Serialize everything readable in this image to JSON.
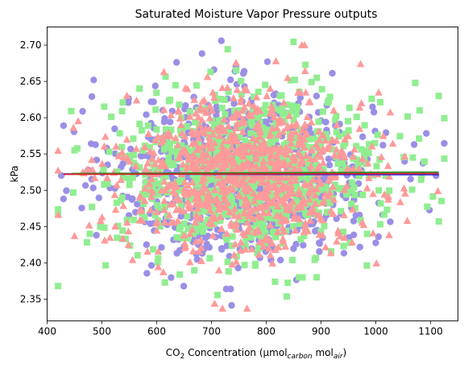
{
  "chart_data": {
    "type": "scatter",
    "title": "Saturated Moisture Vapor Pressure outputs",
    "xlabel": {
      "prefix": "CO",
      "sub1": "2",
      "middle": " Concentration (μmol",
      "sub2": "carbon",
      "middle2": " mol",
      "sub3": "air",
      "suffix": ")"
    },
    "ylabel": "kPa",
    "xlim": [
      400,
      1150
    ],
    "ylim": [
      2.32,
      2.725
    ],
    "x_ticks": [
      "400",
      "500",
      "600",
      "700",
      "800",
      "900",
      "1000",
      "1100"
    ],
    "y_ticks": [
      "2.35",
      "2.40",
      "2.45",
      "2.50",
      "2.55",
      "2.60",
      "2.65",
      "2.70"
    ],
    "grid": false,
    "series": [
      {
        "marker": "circle",
        "color": "#9a8fe6",
        "x_mean": 760,
        "x_sd": 115,
        "y_mean": 2.522,
        "y_sd": 0.055,
        "notable_points": [
          {
            "x": 430,
            "y": 2.589
          },
          {
            "x": 430,
            "y": 2.488
          },
          {
            "x": 485,
            "y": 2.652
          },
          {
            "x": 727,
            "y": 2.364
          },
          {
            "x": 735,
            "y": 2.364
          },
          {
            "x": 718,
            "y": 2.706
          },
          {
            "x": 1070,
            "y": 2.563
          },
          {
            "x": 1110,
            "y": 2.52
          },
          {
            "x": 490,
            "y": 2.438
          }
        ]
      },
      {
        "marker": "square",
        "color": "#90ee90",
        "x_mean": 770,
        "x_sd": 120,
        "y_mean": 2.522,
        "y_sd": 0.055,
        "notable_points": [
          {
            "x": 1115,
            "y": 2.63
          },
          {
            "x": 1115,
            "y": 2.457
          },
          {
            "x": 1072,
            "y": 2.648
          },
          {
            "x": 1080,
            "y": 2.61
          },
          {
            "x": 450,
            "y": 2.555
          },
          {
            "x": 478,
            "y": 2.44
          },
          {
            "x": 860,
            "y": 2.38
          },
          {
            "x": 615,
            "y": 2.373
          }
        ]
      },
      {
        "marker": "triangle",
        "color": "#ff9a9a",
        "x_mean": 760,
        "x_sd": 112,
        "y_mean": 2.522,
        "y_sd": 0.055,
        "notable_points": [
          {
            "x": 720,
            "y": 2.337
          },
          {
            "x": 765,
            "y": 2.337
          },
          {
            "x": 448,
            "y": 2.586
          },
          {
            "x": 450,
            "y": 2.437
          },
          {
            "x": 865,
            "y": 2.7
          },
          {
            "x": 870,
            "y": 2.7
          },
          {
            "x": 995,
            "y": 2.495
          }
        ]
      }
    ],
    "fit_lines": [
      {
        "color": "#1a1aff",
        "x": [
          430,
          1115
        ],
        "y": [
          2.5225,
          2.5215
        ]
      },
      {
        "color": "#2a8a2a",
        "x": [
          445,
          1115
        ],
        "y": [
          2.523,
          2.525
        ]
      },
      {
        "color": "#d62728",
        "x": [
          430,
          1115
        ],
        "y": [
          2.522,
          2.523
        ]
      }
    ]
  }
}
